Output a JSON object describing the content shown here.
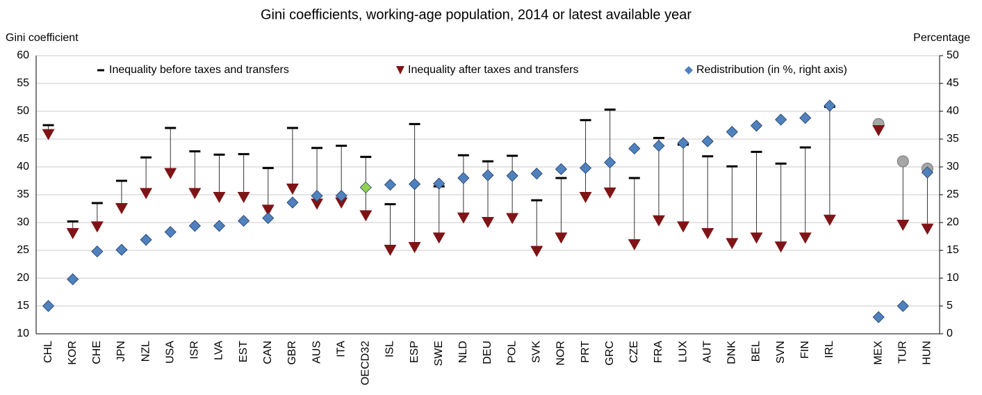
{
  "chart_data": {
    "type": "dot-range",
    "title": "Gini coefficients, working-age population, 2014 or latest available year",
    "y_label": "Gini coefficient",
    "y2_label": "Percentage",
    "categories": [
      "CHL",
      "KOR",
      "CHE",
      "JPN",
      "NZL",
      "USA",
      "ISR",
      "LVA",
      "EST",
      "CAN",
      "GBR",
      "AUS",
      "ITA",
      "OECD32",
      "ISL",
      "ESP",
      "SWE",
      "NLD",
      "DEU",
      "POL",
      "SVK",
      "NOR",
      "PRT",
      "GRC",
      "CZE",
      "FRA",
      "LUX",
      "AUT",
      "DNK",
      "BEL",
      "SVN",
      "FIN",
      "IRL",
      null,
      "MEX",
      "TUR",
      "HUN"
    ],
    "ylim": [
      10,
      60
    ],
    "yticks": [
      10,
      15,
      20,
      25,
      30,
      35,
      40,
      45,
      50,
      55,
      60
    ],
    "y2lim": [
      0,
      50
    ],
    "y2ticks": [
      0,
      5,
      10,
      15,
      20,
      25,
      30,
      35,
      40,
      45,
      50
    ],
    "grid": true,
    "series": [
      {
        "name": "Inequality before taxes and transfers",
        "color": "#000000",
        "marker": "dash",
        "values": [
          47.5,
          30.2,
          33.5,
          37.5,
          41.7,
          47,
          42.8,
          42.2,
          42.3,
          39.8,
          47,
          43.4,
          43.8,
          41.8,
          33.3,
          47.7,
          36.5,
          42.1,
          41,
          42,
          34,
          38,
          48.4,
          50.3,
          38,
          45.2,
          44,
          41.9,
          40.1,
          42.7,
          40.6,
          43.5,
          50.8,
          null,
          47.7,
          41,
          39.7
        ],
        "colors": [
          "#000000",
          "#000000",
          "#000000",
          "#000000",
          "#000000",
          "#000000",
          "#000000",
          "#000000",
          "#000000",
          "#000000",
          "#000000",
          "#000000",
          "#000000",
          "#000000",
          "#000000",
          "#000000",
          "#000000",
          "#000000",
          "#000000",
          "#000000",
          "#000000",
          "#000000",
          "#000000",
          "#000000",
          "#000000",
          "#000000",
          "#000000",
          "#000000",
          "#000000",
          "#000000",
          "#000000",
          "#000000",
          "#000000",
          null,
          "#a6a6a6",
          "#a6a6a6",
          "#a6a6a6"
        ]
      },
      {
        "name": "Inequality after taxes and transfers",
        "color": "#7f1416",
        "marker": "triangle-down",
        "values": [
          45.8,
          28,
          29.2,
          32.5,
          35.2,
          38.8,
          35.2,
          34.5,
          34.5,
          32.2,
          36,
          33.3,
          33.5,
          31.2,
          25,
          25.5,
          27.2,
          30.8,
          30,
          30.7,
          24.8,
          27.2,
          34.5,
          35.3,
          26,
          30.3,
          29.2,
          28,
          26.2,
          27.2,
          25.6,
          27.2,
          30.4,
          null,
          46.5,
          29.5,
          28.8
        ]
      },
      {
        "name": "Redistribution (in %, right axis)",
        "color": "#4f81bd",
        "marker": "diamond",
        "axis": "y2",
        "values": [
          5,
          9.8,
          14.8,
          15.1,
          16.9,
          18.3,
          19.4,
          19.4,
          20.3,
          20.8,
          23.6,
          24.8,
          24.8,
          26.3,
          26.8,
          26.9,
          27,
          28,
          28.5,
          28.4,
          28.8,
          29.6,
          29.8,
          30.8,
          33.3,
          33.8,
          34.3,
          34.6,
          36.3,
          37.4,
          38.5,
          38.8,
          41,
          null,
          3,
          5,
          29
        ],
        "colors": [
          "#4f81bd",
          "#4f81bd",
          "#4f81bd",
          "#4f81bd",
          "#4f81bd",
          "#4f81bd",
          "#4f81bd",
          "#4f81bd",
          "#4f81bd",
          "#4f81bd",
          "#4f81bd",
          "#4f81bd",
          "#4f81bd",
          "#92d050",
          "#4f81bd",
          "#4f81bd",
          "#4f81bd",
          "#4f81bd",
          "#4f81bd",
          "#4f81bd",
          "#4f81bd",
          "#4f81bd",
          "#4f81bd",
          "#4f81bd",
          "#4f81bd",
          "#4f81bd",
          "#4f81bd",
          "#4f81bd",
          "#4f81bd",
          "#4f81bd",
          "#4f81bd",
          "#4f81bd",
          "#4f81bd",
          null,
          "#4f81bd",
          "#4f81bd",
          "#4f81bd"
        ]
      }
    ]
  }
}
